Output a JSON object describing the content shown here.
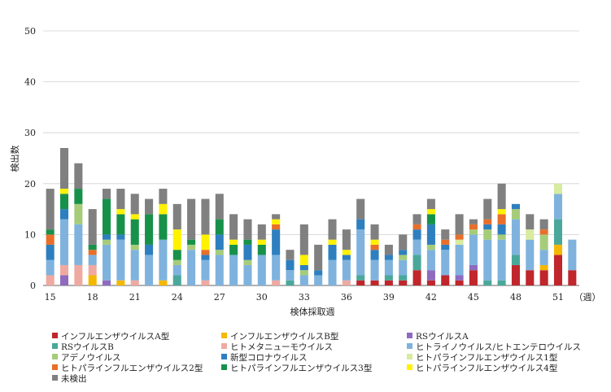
{
  "chart_data": {
    "type": "bar",
    "stacked": true,
    "title": "",
    "xlabel": "検体採取週",
    "ylabel": "検出数",
    "x_unit": "（週）",
    "ylim": [
      0,
      50
    ],
    "yticks": [
      0,
      10,
      20,
      30,
      40,
      50
    ],
    "grid": true,
    "legend_position": "bottom",
    "categories": [
      15,
      16,
      17,
      18,
      19,
      20,
      21,
      22,
      23,
      24,
      25,
      26,
      27,
      28,
      29,
      30,
      31,
      32,
      33,
      34,
      35,
      36,
      37,
      38,
      39,
      40,
      41,
      42,
      43,
      44,
      45,
      46,
      47,
      48,
      49,
      50,
      51,
      52
    ],
    "x_tick_labels": [
      "15",
      "18",
      "21",
      "24",
      "27",
      "30",
      "33",
      "36",
      "39",
      "42",
      "45",
      "48",
      "51"
    ],
    "series": [
      {
        "name": "インフルエンザウイルスA型",
        "color": "#c0262b",
        "values": [
          0,
          0,
          0,
          0,
          0,
          0,
          0,
          0,
          0,
          0,
          0,
          0,
          0,
          0,
          0,
          0,
          0,
          0,
          0,
          0,
          0,
          0,
          1,
          1,
          1,
          1,
          3,
          1,
          2,
          1,
          3,
          0,
          0,
          4,
          3,
          3,
          6,
          3
        ]
      },
      {
        "name": "インフルエンザウイルスB型",
        "color": "#f5b800",
        "values": [
          0,
          0,
          0,
          2,
          0,
          1,
          0,
          0,
          1,
          0,
          0,
          0,
          0,
          0,
          0,
          0,
          0,
          0,
          0,
          0,
          0,
          0,
          0,
          0,
          0,
          0,
          0,
          0,
          0,
          0,
          0,
          0,
          0,
          0,
          0,
          1,
          2,
          0
        ]
      },
      {
        "name": "RSウイルスA",
        "color": "#8e6bbf",
        "values": [
          0,
          2,
          0,
          0,
          1,
          0,
          0,
          0,
          0,
          0,
          0,
          0,
          0,
          0,
          0,
          0,
          0,
          0,
          0,
          0,
          0,
          0,
          0,
          0,
          0,
          0,
          0,
          2,
          0,
          1,
          1,
          0,
          0,
          0,
          0,
          0,
          0,
          0
        ]
      },
      {
        "name": "RSウイルスB",
        "color": "#4aa89a",
        "values": [
          0,
          0,
          0,
          0,
          0,
          0,
          0,
          0,
          0,
          2,
          0,
          0,
          0,
          0,
          0,
          0,
          0,
          1,
          0,
          0,
          0,
          0,
          1,
          0,
          1,
          1,
          3,
          0,
          0,
          0,
          0,
          1,
          1,
          2,
          0,
          0,
          5,
          0
        ]
      },
      {
        "name": "ヒトメタニューモウイルス",
        "color": "#f0a9a0",
        "values": [
          2,
          2,
          4,
          2,
          0,
          0,
          1,
          0,
          0,
          0,
          0,
          1,
          0,
          0,
          0,
          0,
          1,
          0,
          0,
          0,
          0,
          1,
          0,
          0,
          0,
          0,
          0,
          0,
          0,
          0,
          0,
          0,
          0,
          0,
          0,
          0,
          0,
          0
        ]
      },
      {
        "name": "ヒトライノウイルス/ヒトエンテロウイルス",
        "color": "#7fb3de",
        "values": [
          3,
          9,
          8,
          2,
          7,
          8,
          6,
          6,
          8,
          2,
          7,
          4,
          6,
          6,
          4,
          6,
          5,
          2,
          2,
          2,
          5,
          4,
          9,
          4,
          3,
          3,
          3,
          4,
          5,
          6,
          6,
          8,
          8,
          7,
          6,
          3,
          5,
          6
        ]
      },
      {
        "name": "アデノウイルス",
        "color": "#a6cc7a",
        "values": [
          0,
          0,
          4,
          0,
          1,
          0,
          1,
          0,
          0,
          1,
          1,
          0,
          1,
          0,
          1,
          0,
          0,
          0,
          1,
          0,
          0,
          0,
          0,
          0,
          0,
          1,
          0,
          1,
          0,
          0,
          1,
          2,
          1,
          2,
          0,
          3,
          0,
          0
        ]
      },
      {
        "name": "新型コロナウイルス",
        "color": "#2e7fbf",
        "values": [
          3,
          2,
          0,
          0,
          1,
          1,
          0,
          2,
          0,
          0,
          0,
          1,
          3,
          0,
          3,
          0,
          5,
          2,
          1,
          1,
          3,
          1,
          2,
          2,
          1,
          1,
          2,
          4,
          1,
          0,
          0,
          1,
          2,
          1,
          0,
          0,
          0,
          0
        ]
      },
      {
        "name": "ヒトパラインフルエンザウイルス1型",
        "color": "#d8eb9e",
        "values": [
          0,
          0,
          0,
          0,
          0,
          0,
          0,
          0,
          0,
          0,
          0,
          0,
          0,
          0,
          0,
          0,
          0,
          0,
          0,
          0,
          0,
          0,
          0,
          0,
          0,
          0,
          0,
          0,
          0,
          1,
          0,
          0,
          0,
          0,
          2,
          0,
          2,
          0
        ]
      },
      {
        "name": "ヒトパラインフルエンザウイルス2型",
        "color": "#e86f2a",
        "values": [
          2,
          0,
          0,
          1,
          0,
          0,
          0,
          0,
          0,
          0,
          0,
          1,
          0,
          0,
          0,
          0,
          1,
          0,
          0,
          0,
          0,
          0,
          0,
          1,
          0,
          0,
          1,
          0,
          1,
          1,
          1,
          1,
          2,
          0,
          0,
          1,
          0,
          0
        ]
      },
      {
        "name": "ヒトパラインフルエンザウイルス3型",
        "color": "#17914a",
        "values": [
          1,
          3,
          3,
          1,
          7,
          4,
          5,
          6,
          5,
          2,
          1,
          0,
          3,
          2,
          1,
          2,
          0,
          0,
          0,
          0,
          0,
          0,
          0,
          0,
          0,
          0,
          0,
          2,
          0,
          0,
          0,
          0,
          0,
          0,
          0,
          0,
          0,
          0
        ]
      },
      {
        "name": "ヒトパラインフルエンザウイルス4型",
        "color": "#fff200",
        "values": [
          0,
          1,
          0,
          0,
          0,
          1,
          1,
          0,
          2,
          4,
          0,
          3,
          0,
          1,
          0,
          1,
          1,
          0,
          2,
          0,
          1,
          1,
          0,
          1,
          0,
          0,
          0,
          1,
          0,
          0,
          0,
          0,
          1,
          0,
          0,
          0,
          0,
          0
        ]
      },
      {
        "name": "未検出",
        "color": "#808080",
        "values": [
          8,
          8,
          5,
          7,
          2,
          4,
          4,
          3,
          3,
          5,
          8,
          7,
          5,
          5,
          4,
          3,
          1,
          2,
          6,
          5,
          4,
          4,
          4,
          3,
          2,
          3,
          2,
          2,
          2,
          4,
          1,
          4,
          5,
          0,
          3,
          2,
          0,
          0
        ]
      }
    ]
  }
}
